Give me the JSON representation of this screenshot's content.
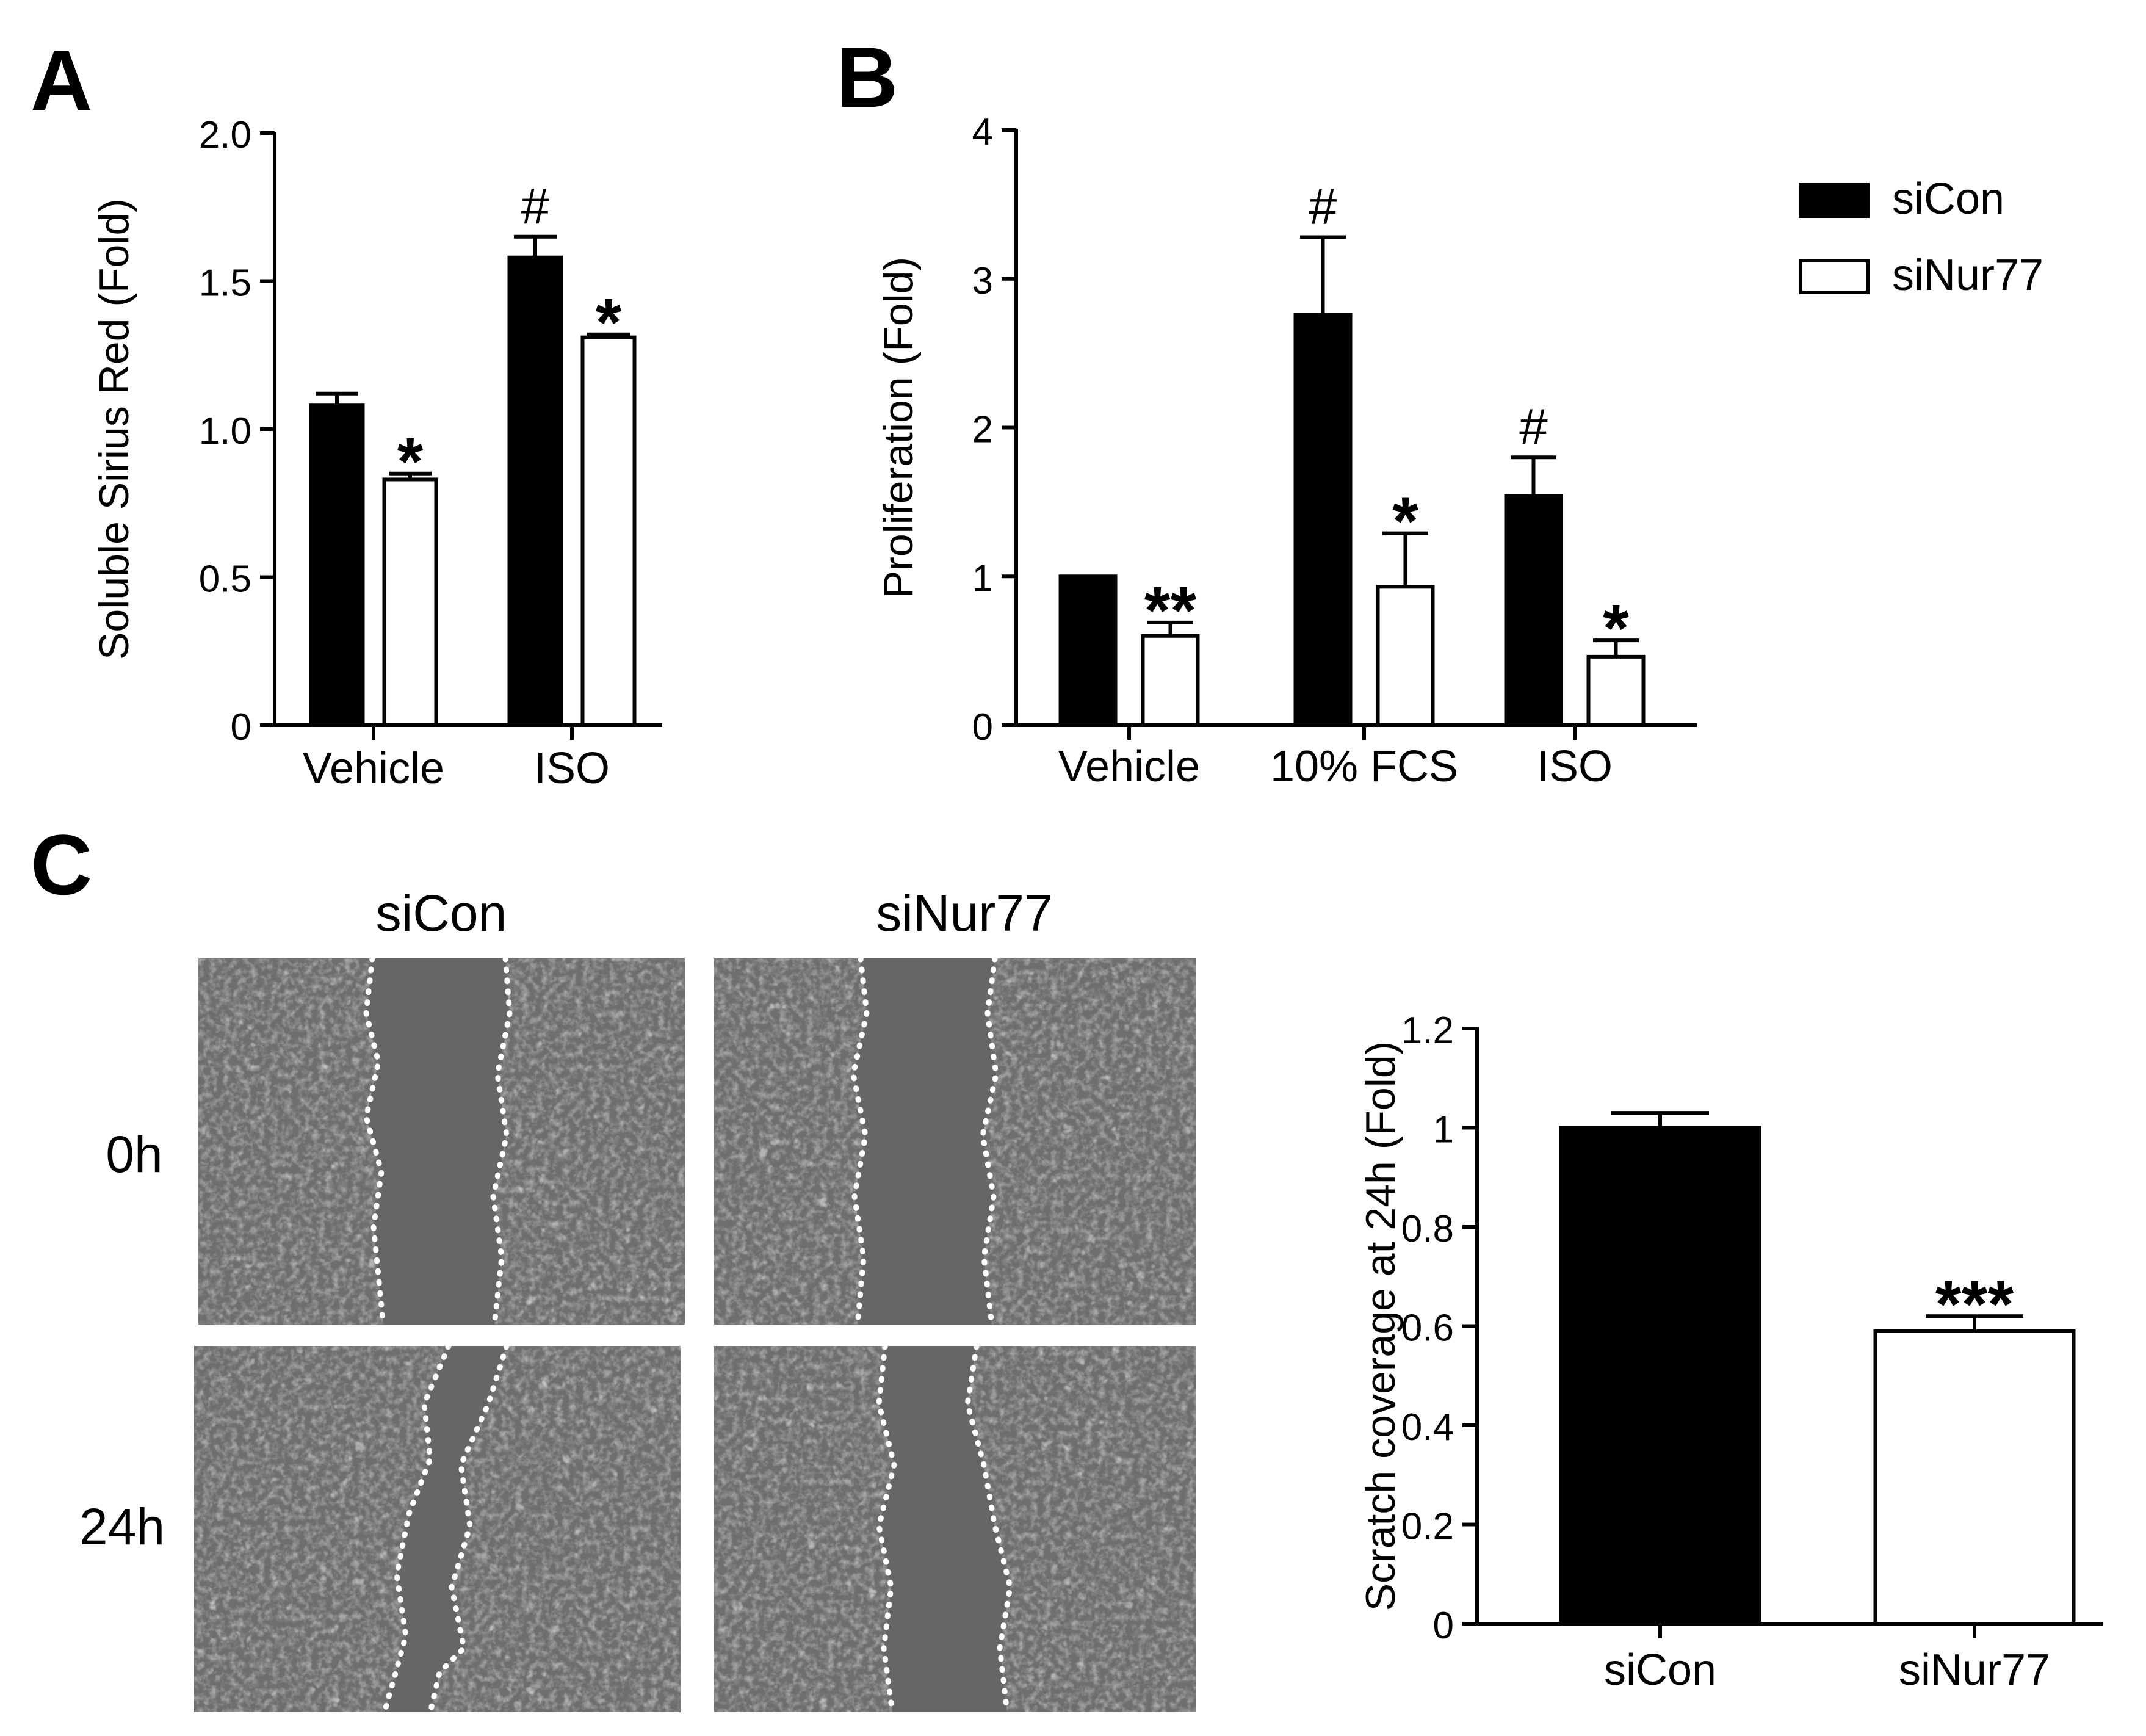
{
  "panels": {
    "a": "A",
    "b": "B",
    "c": "C"
  },
  "legend": {
    "items": [
      {
        "label": "siCon",
        "fill": "#000000"
      },
      {
        "label": "siNur77",
        "fill": "#ffffff"
      }
    ]
  },
  "micrographs": {
    "columns": [
      "siCon",
      "siNur77"
    ],
    "rows": [
      "0h",
      "24h"
    ]
  },
  "chart_data": [
    {
      "id": "A",
      "type": "bar",
      "title": "",
      "xlabel": "",
      "ylabel": "Soluble Sirius Red (Fold)",
      "categories": [
        "Vehicle",
        "ISO"
      ],
      "ylim": [
        0,
        2.0
      ],
      "yticks": [
        "0",
        "0.5",
        "1.0",
        "1.5",
        "2.0"
      ],
      "series": [
        {
          "name": "siCon",
          "values": [
            1.08,
            1.58
          ],
          "errors": [
            0.04,
            0.07
          ]
        },
        {
          "name": "siNur77",
          "values": [
            0.83,
            1.31
          ],
          "errors": [
            0.02,
            0.01
          ]
        }
      ],
      "annotations": [
        {
          "category": 0,
          "series": 1,
          "text": "*"
        },
        {
          "category": 1,
          "series": 0,
          "text": "#"
        },
        {
          "category": 1,
          "series": 1,
          "text": "*"
        }
      ]
    },
    {
      "id": "B",
      "type": "bar",
      "title": "",
      "xlabel": "",
      "ylabel": "Proliferation (Fold)",
      "categories": [
        "Vehicle",
        "10% FCS",
        "ISO"
      ],
      "ylim": [
        0,
        4
      ],
      "yticks": [
        "0",
        "1",
        "2",
        "3",
        "4"
      ],
      "series": [
        {
          "name": "siCon",
          "values": [
            1.0,
            2.76,
            1.54
          ],
          "errors": [
            0,
            0.52,
            0.26
          ]
        },
        {
          "name": "siNur77",
          "values": [
            0.6,
            0.93,
            0.46
          ],
          "errors": [
            0.09,
            0.36,
            0.11
          ]
        }
      ],
      "annotations": [
        {
          "category": 0,
          "series": 1,
          "text": "**"
        },
        {
          "category": 1,
          "series": 0,
          "text": "#"
        },
        {
          "category": 1,
          "series": 1,
          "text": "*"
        },
        {
          "category": 2,
          "series": 0,
          "text": "#"
        },
        {
          "category": 2,
          "series": 1,
          "text": "*"
        }
      ]
    },
    {
      "id": "C",
      "type": "bar",
      "title": "",
      "xlabel": "",
      "ylabel": "Scratch coverage at 24h (Fold)",
      "categories": [
        "siCon",
        "siNur77"
      ],
      "ylim": [
        0,
        1.2
      ],
      "yticks": [
        "0",
        "0.2",
        "0.4",
        "0.6",
        "0.8",
        "1",
        "1.2"
      ],
      "series": [
        {
          "values": [
            1.0,
            0.59
          ],
          "errors": [
            0.03,
            0.03
          ],
          "fills": [
            "#000000",
            "#ffffff"
          ]
        }
      ],
      "annotations": [
        {
          "category": 1,
          "series": 0,
          "text": "***"
        }
      ]
    }
  ]
}
